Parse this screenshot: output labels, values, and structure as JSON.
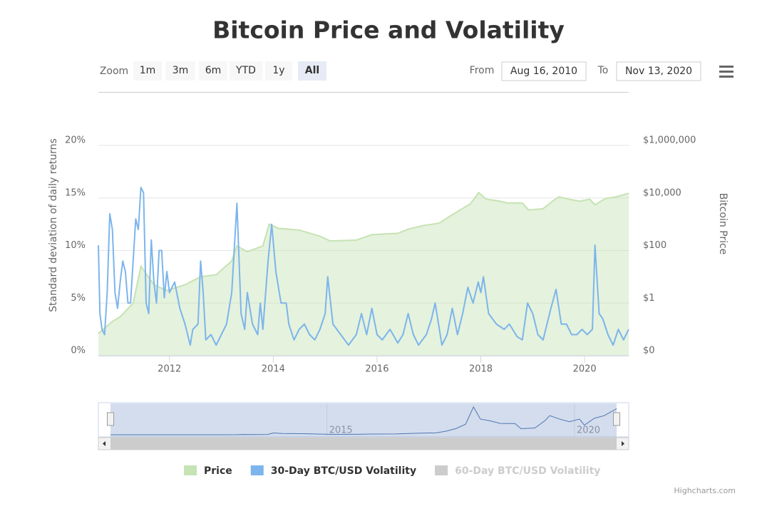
{
  "chart_data": {
    "type": "line",
    "title": "Bitcoin Price and Volatility",
    "y_label": "Standard deviation of daily returns",
    "y2_label": "Bitcoin Price",
    "xlim": [
      2010.63,
      2020.85
    ],
    "xticks": [
      2012,
      2014,
      2016,
      2018,
      2020
    ],
    "ylim": [
      0,
      20
    ],
    "yticks": [
      {
        "value": 0,
        "label": "0%"
      },
      {
        "value": 5,
        "label": "5%"
      },
      {
        "value": 10,
        "label": "10%"
      },
      {
        "value": 15,
        "label": "15%"
      },
      {
        "value": 20,
        "label": "20%"
      }
    ],
    "y2lim": [
      0.01,
      1000000
    ],
    "y2ticks": [
      {
        "value": 0.01,
        "label": "$0"
      },
      {
        "value": 1,
        "label": "$1"
      },
      {
        "value": 100,
        "label": "$100"
      },
      {
        "value": 10000,
        "label": "$10,000"
      },
      {
        "value": 1000000,
        "label": "$1,000,000"
      }
    ],
    "y2_log": true,
    "grid": true,
    "legend": "bottom",
    "series": [
      {
        "name": "Price",
        "type": "area",
        "axis": "y2",
        "color": "#c5e3b3",
        "visible": true,
        "x": [
          2010.63,
          2010.9,
          2011.05,
          2011.3,
          2011.45,
          2011.7,
          2011.95,
          2012.3,
          2012.6,
          2012.9,
          2013.2,
          2013.3,
          2013.5,
          2013.8,
          2013.92,
          2014.1,
          2014.5,
          2014.9,
          2015.1,
          2015.6,
          2015.9,
          2016.4,
          2016.6,
          2016.9,
          2017.2,
          2017.4,
          2017.6,
          2017.8,
          2017.96,
          2018.1,
          2018.3,
          2018.5,
          2018.8,
          2018.92,
          2019.2,
          2019.4,
          2019.5,
          2019.7,
          2019.9,
          2020.1,
          2020.2,
          2020.4,
          2020.6,
          2020.85
        ],
        "values": [
          0.07,
          0.2,
          0.3,
          1,
          25,
          5,
          3,
          5,
          10,
          12,
          40,
          150,
          90,
          150,
          1000,
          700,
          600,
          350,
          230,
          250,
          400,
          450,
          650,
          900,
          1100,
          2000,
          3500,
          6000,
          16000,
          9000,
          8000,
          6500,
          6400,
          3500,
          3900,
          8000,
          11000,
          9000,
          7500,
          9000,
          5500,
          9500,
          11000,
          15000
        ]
      },
      {
        "name": "30-Day BTC/USD Volatility",
        "type": "line",
        "axis": "y",
        "color": "#7cb5ec",
        "visible": true,
        "x": [
          2010.63,
          2010.66,
          2010.7,
          2010.75,
          2010.8,
          2010.85,
          2010.9,
          2010.95,
          2011.0,
          2011.05,
          2011.1,
          2011.15,
          2011.2,
          2011.25,
          2011.3,
          2011.35,
          2011.4,
          2011.45,
          2011.5,
          2011.55,
          2011.6,
          2011.65,
          2011.7,
          2011.75,
          2011.8,
          2011.85,
          2011.9,
          2011.95,
          2012.0,
          2012.1,
          2012.2,
          2012.3,
          2012.4,
          2012.45,
          2012.55,
          2012.6,
          2012.65,
          2012.7,
          2012.8,
          2012.9,
          2013.0,
          2013.1,
          2013.2,
          2013.3,
          2013.38,
          2013.45,
          2013.5,
          2013.6,
          2013.7,
          2013.75,
          2013.8,
          2013.9,
          2013.97,
          2014.05,
          2014.15,
          2014.25,
          2014.3,
          2014.4,
          2014.5,
          2014.6,
          2014.7,
          2014.8,
          2014.9,
          2015.0,
          2015.05,
          2015.15,
          2015.3,
          2015.45,
          2015.6,
          2015.7,
          2015.8,
          2015.9,
          2016.0,
          2016.1,
          2016.25,
          2016.4,
          2016.5,
          2016.6,
          2016.7,
          2016.8,
          2016.95,
          2017.05,
          2017.12,
          2017.25,
          2017.35,
          2017.45,
          2017.55,
          2017.65,
          2017.75,
          2017.85,
          2017.95,
          2018.0,
          2018.05,
          2018.15,
          2018.3,
          2018.45,
          2018.55,
          2018.7,
          2018.8,
          2018.9,
          2019.0,
          2019.1,
          2019.2,
          2019.35,
          2019.45,
          2019.55,
          2019.65,
          2019.75,
          2019.85,
          2019.95,
          2020.05,
          2020.15,
          2020.2,
          2020.28,
          2020.35,
          2020.45,
          2020.55,
          2020.65,
          2020.75,
          2020.85
        ],
        "values": [
          10.5,
          4,
          2.5,
          2,
          6,
          13.5,
          12,
          6,
          4.5,
          7,
          9,
          8,
          5,
          5,
          9,
          13,
          12,
          16,
          15.5,
          5,
          4,
          11,
          7,
          5,
          10,
          10,
          5.5,
          8,
          6,
          7,
          4.5,
          3,
          1,
          2.5,
          3,
          9,
          6,
          1.5,
          2,
          1,
          2,
          3,
          6,
          14.5,
          4,
          2.5,
          6,
          3,
          2,
          5,
          2.5,
          9,
          12.5,
          8,
          5,
          5,
          3,
          1.5,
          2.5,
          3,
          2,
          1.5,
          2.5,
          4,
          7.5,
          3,
          2,
          1,
          2,
          4,
          2,
          4.5,
          2,
          1.5,
          2.5,
          1.2,
          2,
          4,
          2,
          1,
          2,
          3.5,
          5,
          1,
          2,
          4.5,
          2,
          4,
          6.5,
          5,
          7,
          6,
          7.5,
          4,
          3,
          2.5,
          3,
          1.8,
          1.5,
          5,
          4,
          2,
          1.5,
          4.5,
          6.3,
          3,
          3,
          2,
          2,
          2.5,
          2,
          2.5,
          10.5,
          4,
          3.5,
          2,
          1,
          2.5,
          1.5,
          2.5
        ]
      },
      {
        "name": "60-Day BTC/USD Volatility",
        "type": "line",
        "axis": "y",
        "color": "#cccccc",
        "visible": false
      }
    ],
    "navigator": {
      "xticks": [
        2015,
        2020
      ]
    }
  },
  "range_selector": {
    "zoom_label": "Zoom",
    "buttons": [
      "1m",
      "3m",
      "6m",
      "YTD",
      "1y",
      "All"
    ],
    "selected": 5,
    "from_label": "From",
    "from": "Aug 16, 2010",
    "to_label": "To",
    "to": "Nov 13, 2020"
  },
  "credits": "Highcharts.com"
}
